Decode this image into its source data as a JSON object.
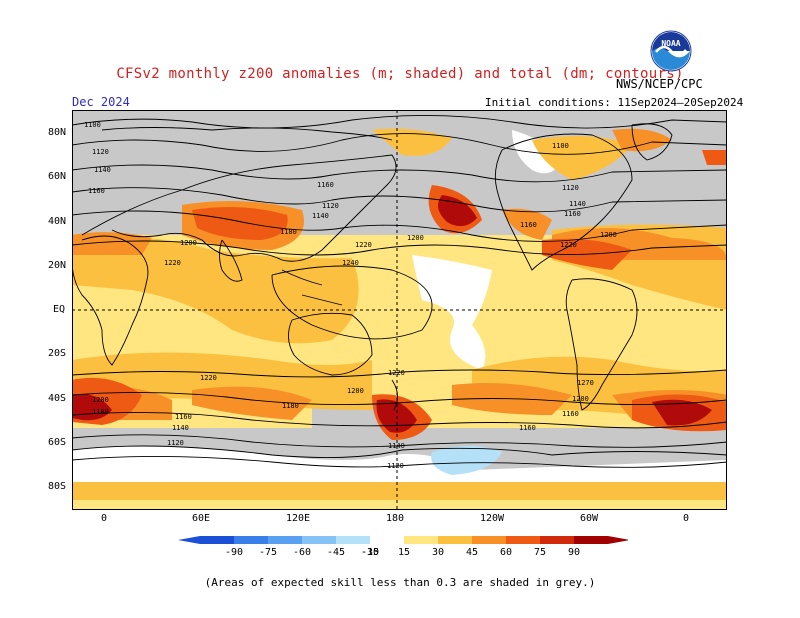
{
  "header": {
    "title": "CFSv2 monthly z200 anomalies (m; shaded) and total (dm; contours)",
    "month": "Dec 2024",
    "agency": "NWS/NCEP/CPC",
    "initial_conditions": "Initial conditions: 11Sep2024–20Sep2024",
    "logo_text": "NOAA"
  },
  "axes": {
    "lat_labels": [
      "80N",
      "60N",
      "40N",
      "20N",
      "EQ",
      "20S",
      "40S",
      "60S",
      "80S"
    ],
    "lon_labels": [
      "0",
      "60E",
      "120E",
      "180",
      "120W",
      "60W",
      "0"
    ]
  },
  "contour_labels": [
    "1100",
    "1120",
    "1140",
    "1160",
    "1180",
    "1200",
    "1220",
    "1240",
    "1270"
  ],
  "colorbar": {
    "labels": [
      "-90",
      "-75",
      "-60",
      "-45",
      "-30",
      "-15",
      "15",
      "30",
      "45",
      "60",
      "75",
      "90"
    ],
    "colors": [
      "#1a4fd6",
      "#3a7ee8",
      "#5aa0f0",
      "#86c2f6",
      "#b4e0f8",
      "#ffffff",
      "#ffe680",
      "#fcc040",
      "#f89028",
      "#ee5a14",
      "#d02a0a",
      "#a00000"
    ],
    "grey_color": "#c8c8c8"
  },
  "footer": "(Areas of expected skill less than 0.3 are shaded in grey.)"
}
